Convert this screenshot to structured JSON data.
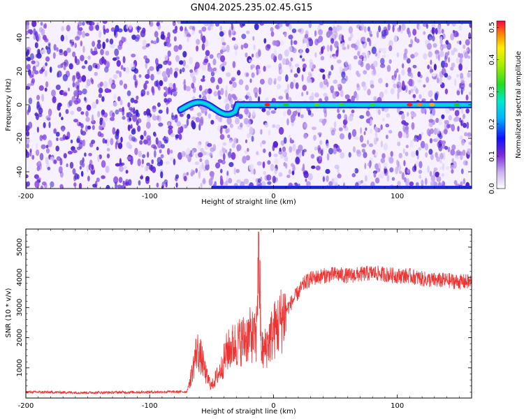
{
  "title": "GN04.2025.235.02.45.G15",
  "chart_data": [
    {
      "type": "heatmap",
      "xlabel": "Height of straight line (km)",
      "ylabel": "Frequency (Hz)",
      "xlim": [
        -200,
        160
      ],
      "ylim": [
        -50,
        50
      ],
      "xticks": [
        "-200",
        "-100",
        "0",
        "100"
      ],
      "yticks": [
        "-40",
        "-20",
        "0",
        "20",
        "40"
      ],
      "colorbar": {
        "label": "Normalized spectral amplitude",
        "range": [
          0,
          0.52
        ],
        "ticks": [
          "0.0",
          "0.1",
          "0.2",
          "0.3",
          "0.4",
          "0.5"
        ]
      },
      "features": [
        {
          "name": "carrier",
          "frequency": 0,
          "x_start": -75,
          "x_end": 160
        }
      ]
    },
    {
      "type": "line",
      "xlabel": "Height of straight line (km)",
      "ylabel": "SNR (10 * v/v)",
      "xlim": [
        -200,
        160
      ],
      "ylim": [
        0,
        5600
      ],
      "xticks": [
        "-200",
        "-100",
        "0",
        "100"
      ],
      "yticks": [
        "1000",
        "2000",
        "3000",
        "4000",
        "5000"
      ],
      "color": "#ee3333",
      "series": [
        {
          "x": [
            -200,
            -150,
            -100,
            -70,
            -66,
            -62,
            -58,
            -54,
            -50,
            -46,
            -42,
            -38,
            -34,
            -30,
            -26,
            -22,
            -18,
            -14,
            -12,
            -10,
            -8,
            -5,
            0,
            5,
            10,
            15,
            20,
            25,
            30,
            40,
            50,
            60,
            70,
            80,
            90,
            100,
            110,
            120,
            130,
            140,
            150,
            160
          ],
          "y": [
            200,
            180,
            200,
            210,
            800,
            1600,
            1300,
            700,
            400,
            700,
            1000,
            1500,
            1700,
            1800,
            1900,
            2000,
            2100,
            1900,
            5400,
            1700,
            1500,
            1800,
            2200,
            2500,
            2900,
            3200,
            3500,
            3800,
            3950,
            4050,
            4100,
            4050,
            4100,
            4150,
            4100,
            4050,
            4050,
            3950,
            3900,
            3900,
            3850,
            3850
          ]
        }
      ]
    }
  ]
}
